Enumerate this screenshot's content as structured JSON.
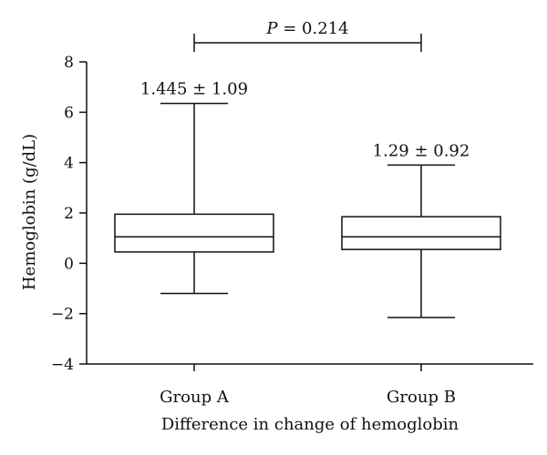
{
  "chart_data": {
    "type": "box",
    "xlabel": "Difference in change of hemoglobin",
    "ylabel": "Hemoglobin (g/dL)",
    "ylim": [
      -4,
      8
    ],
    "yticks": [
      -4,
      -2,
      0,
      2,
      4,
      6,
      8
    ],
    "grid": false,
    "categories": [
      "Group A",
      "Group B"
    ],
    "boxes": [
      {
        "category": "Group A",
        "min": -1.2,
        "q1": 0.45,
        "median": 1.05,
        "q3": 1.95,
        "max": 6.35,
        "label": "1.445 ± 1.09"
      },
      {
        "category": "Group B",
        "min": -2.15,
        "q1": 0.55,
        "median": 1.05,
        "q3": 1.85,
        "max": 3.9,
        "label": "1.29 ± 0.92"
      }
    ],
    "comparison": {
      "between": [
        "Group A",
        "Group B"
      ],
      "p_prefix": "P",
      "p_suffix": " = 0.214",
      "label": "P = 0.214"
    },
    "colors": {
      "stroke": "#111111",
      "background": "#ffffff"
    }
  }
}
